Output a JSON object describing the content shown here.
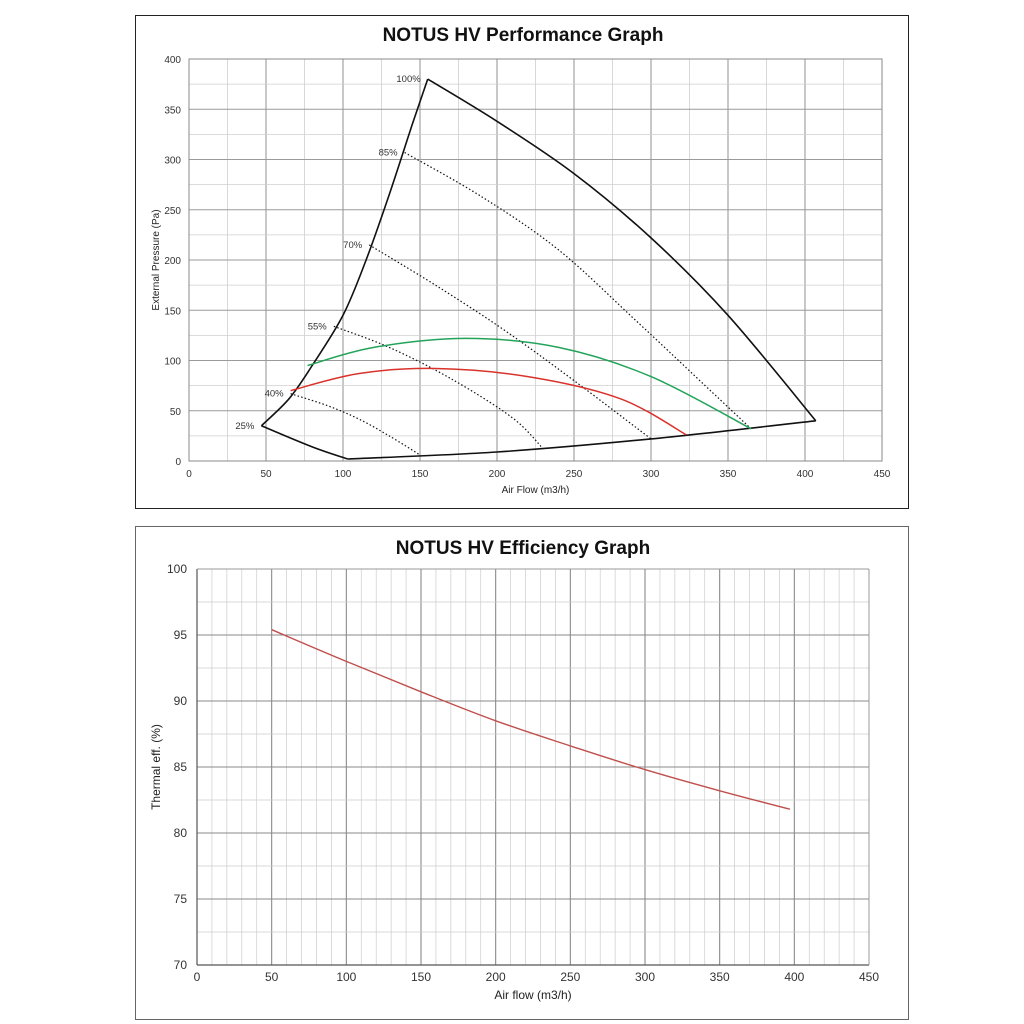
{
  "chart_data": [
    {
      "type": "line",
      "title": "NOTUS HV Performance Graph",
      "xlabel": "Air Flow (m3/h)",
      "ylabel": "External Pressure (Pa)",
      "xlim": [
        0,
        450
      ],
      "ylim": [
        0,
        400
      ],
      "xticks": [
        0,
        50,
        100,
        150,
        200,
        250,
        300,
        350,
        400,
        450
      ],
      "yticks": [
        0,
        50,
        100,
        150,
        200,
        250,
        300,
        350,
        400
      ],
      "grid": true,
      "colors": {
        "envelope": "#111111",
        "speed_lines": "#111111",
        "green": "#23a35a",
        "red": "#d9322b"
      },
      "envelope": {
        "left_edge": [
          [
            47,
            35
          ],
          [
            65,
            62
          ],
          [
            80,
            95
          ],
          [
            100,
            145
          ],
          [
            115,
            200
          ],
          [
            130,
            265
          ],
          [
            145,
            335
          ],
          [
            155,
            380
          ]
        ],
        "top_edge": [
          [
            155,
            380
          ],
          [
            200,
            338
          ],
          [
            250,
            286
          ],
          [
            300,
            222
          ],
          [
            350,
            145
          ],
          [
            407,
            40
          ]
        ],
        "bottom_right_edge": [
          [
            407,
            40
          ],
          [
            300,
            22
          ],
          [
            200,
            9
          ],
          [
            103,
            2
          ]
        ],
        "bottom_left_edge": [
          [
            103,
            2
          ],
          [
            80,
            14
          ],
          [
            47,
            35
          ]
        ]
      },
      "speed_lines": [
        {
          "name": "25%",
          "points": [
            [
              47,
              35
            ]
          ]
        },
        {
          "name": "40%",
          "points": [
            [
              66,
              67
            ],
            [
              90,
              55
            ],
            [
              110,
              42
            ],
            [
              130,
              25
            ],
            [
              150,
              6
            ]
          ]
        },
        {
          "name": "55%",
          "points": [
            [
              94,
              134
            ],
            [
              130,
              113
            ],
            [
              170,
              82
            ],
            [
              210,
              43
            ],
            [
              230,
              12
            ]
          ]
        },
        {
          "name": "70%",
          "points": [
            [
              117,
              215
            ],
            [
              160,
              175
            ],
            [
              205,
              130
            ],
            [
              250,
              80
            ],
            [
              300,
              22
            ]
          ]
        },
        {
          "name": "85%",
          "points": [
            [
              140,
              307
            ],
            [
              190,
              263
            ],
            [
              240,
              210
            ],
            [
              290,
              140
            ],
            [
              340,
              68
            ],
            [
              365,
              32
            ]
          ]
        },
        {
          "name": "100%",
          "points": [
            [
              155,
              380
            ]
          ]
        }
      ],
      "series": [
        {
          "name": "green",
          "points": [
            [
              77,
              95
            ],
            [
              120,
              113
            ],
            [
              180,
              122
            ],
            [
              240,
              113
            ],
            [
              300,
              84
            ],
            [
              365,
              32
            ]
          ]
        },
        {
          "name": "red",
          "points": [
            [
              66,
              70
            ],
            [
              110,
              87
            ],
            [
              160,
              92
            ],
            [
              220,
              84
            ],
            [
              280,
              62
            ],
            [
              323,
              26
            ]
          ]
        }
      ]
    },
    {
      "type": "line",
      "title": "NOTUS HV Efficiency Graph",
      "xlabel": "Air flow (m3/h)",
      "ylabel": "Thermal eff. (%)",
      "xlim": [
        0,
        450
      ],
      "ylim": [
        70,
        100
      ],
      "xticks": [
        0,
        50,
        100,
        150,
        200,
        250,
        300,
        350,
        400,
        450
      ],
      "yticks": [
        70,
        75,
        80,
        85,
        90,
        95,
        100
      ],
      "grid": true,
      "colors": {
        "line": "#c0504d"
      },
      "series": [
        {
          "name": "thermal efficiency",
          "points": [
            [
              50,
              95.4
            ],
            [
              100,
              93.0
            ],
            [
              150,
              90.7
            ],
            [
              200,
              88.5
            ],
            [
              250,
              86.6
            ],
            [
              300,
              84.8
            ],
            [
              350,
              83.2
            ],
            [
              397,
              81.8
            ]
          ]
        }
      ]
    }
  ]
}
